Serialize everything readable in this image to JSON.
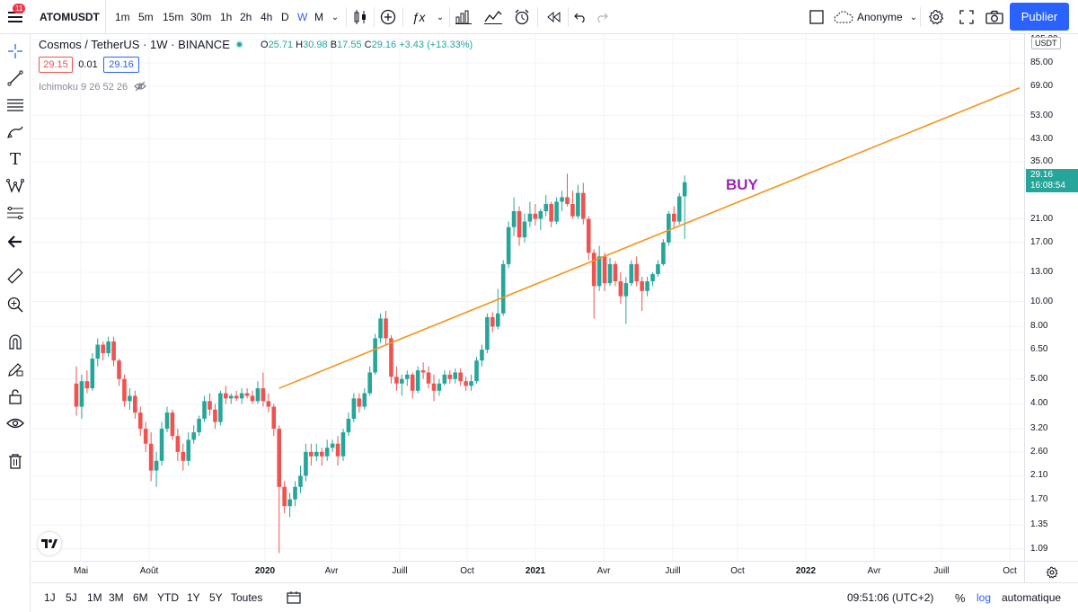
{
  "toolbar": {
    "badge": "11",
    "symbol": "ATOMUSDT",
    "timeframes": [
      "1m",
      "5m",
      "15m",
      "30m",
      "1h",
      "2h",
      "4h",
      "D",
      "W",
      "M"
    ],
    "active_timeframe": "W",
    "indicator_label": "ƒx",
    "account": "Anonyme",
    "publish": "Publier"
  },
  "legend": {
    "title": "Cosmos / TetherUS · 1W · BINANCE",
    "open_key": "O",
    "open": "25.71",
    "high_key": "H",
    "high": "30.98",
    "low_key": "B",
    "low": "17.55",
    "close_key": "C",
    "close": "29.16",
    "change": "+3.43 (+13.33%)",
    "bid": "29.15",
    "spread": "0.01",
    "ask": "29.16",
    "indicator": "Ichimoku 9 26 52 26"
  },
  "price_axis": {
    "unit": "USDT",
    "labels": [
      "105.00",
      "85.00",
      "69.00",
      "53.00",
      "43.00",
      "35.00",
      "21.00",
      "17.00",
      "13.00",
      "10.00",
      "8.00",
      "6.50",
      "5.00",
      "4.00",
      "3.20",
      "2.60",
      "2.10",
      "1.70",
      "1.35",
      "1.09"
    ],
    "current_price": "29.16",
    "countdown": "16:08:54"
  },
  "time_axis": {
    "labels": [
      {
        "text": "Mai",
        "bold": false
      },
      {
        "text": "Août",
        "bold": false
      },
      {
        "text": "2020",
        "bold": true
      },
      {
        "text": "Avr",
        "bold": false
      },
      {
        "text": "Juill",
        "bold": false
      },
      {
        "text": "Oct",
        "bold": false
      },
      {
        "text": "2021",
        "bold": true
      },
      {
        "text": "Avr",
        "bold": false
      },
      {
        "text": "Juill",
        "bold": false
      },
      {
        "text": "Oct",
        "bold": false
      },
      {
        "text": "2022",
        "bold": true
      },
      {
        "text": "Avr",
        "bold": false
      },
      {
        "text": "Juill",
        "bold": false
      },
      {
        "text": "Oct",
        "bold": false
      }
    ]
  },
  "annotation": {
    "text": "BUY",
    "color": "#9c27b0"
  },
  "trendline_color": "#f7931a",
  "colors": {
    "up": "#26a69a",
    "down": "#ef5350",
    "accent": "#2962ff"
  },
  "bottom": {
    "ranges": [
      "1J",
      "5J",
      "1M",
      "3M",
      "6M",
      "YTD",
      "1Y",
      "5Y",
      "Toutes"
    ],
    "time": "09:51:06 (UTC+2)",
    "percent": "%",
    "log": "log",
    "auto": "automatique"
  },
  "chart_data": {
    "type": "candlestick",
    "scale": "log",
    "symbol": "ATOMUSDT",
    "interval": "1W",
    "ylim": [
      0.98,
      110
    ],
    "candles": [
      [
        4.8,
        5.6,
        3.6,
        3.9
      ],
      [
        3.9,
        5.2,
        3.5,
        4.9
      ],
      [
        4.9,
        5.4,
        4.4,
        4.6
      ],
      [
        4.6,
        6.3,
        4.5,
        6.0
      ],
      [
        6.0,
        7.2,
        5.6,
        6.8
      ],
      [
        6.8,
        7.0,
        5.9,
        6.3
      ],
      [
        6.3,
        7.3,
        6.1,
        7.0
      ],
      [
        7.0,
        7.3,
        5.6,
        5.9
      ],
      [
        5.9,
        6.0,
        4.7,
        5.0
      ],
      [
        5.0,
        5.2,
        3.9,
        4.1
      ],
      [
        4.1,
        4.6,
        3.8,
        4.3
      ],
      [
        4.3,
        4.5,
        3.5,
        3.7
      ],
      [
        3.7,
        3.9,
        3.0,
        3.2
      ],
      [
        3.2,
        3.4,
        2.6,
        2.8
      ],
      [
        2.8,
        3.1,
        2.0,
        2.2
      ],
      [
        2.2,
        2.6,
        1.9,
        2.4
      ],
      [
        2.4,
        3.4,
        2.3,
        3.2
      ],
      [
        3.2,
        3.9,
        3.1,
        3.7
      ],
      [
        3.7,
        3.8,
        2.9,
        3.0
      ],
      [
        3.0,
        3.2,
        2.4,
        2.6
      ],
      [
        2.6,
        2.8,
        2.2,
        2.4
      ],
      [
        2.4,
        3.1,
        2.3,
        2.9
      ],
      [
        2.9,
        3.3,
        2.8,
        3.1
      ],
      [
        3.1,
        3.6,
        3.0,
        3.5
      ],
      [
        3.5,
        4.3,
        3.4,
        4.1
      ],
      [
        4.1,
        4.4,
        3.6,
        3.8
      ],
      [
        3.8,
        4.0,
        3.2,
        3.4
      ],
      [
        3.4,
        4.5,
        3.3,
        4.4
      ],
      [
        4.4,
        4.7,
        4.0,
        4.2
      ],
      [
        4.2,
        4.4,
        4.0,
        4.3
      ],
      [
        4.3,
        4.5,
        4.1,
        4.2
      ],
      [
        4.2,
        4.6,
        4.0,
        4.4
      ],
      [
        4.4,
        4.6,
        4.2,
        4.3
      ],
      [
        4.3,
        4.5,
        4.0,
        4.1
      ],
      [
        4.1,
        4.9,
        4.0,
        4.6
      ],
      [
        4.6,
        5.3,
        3.9,
        4.1
      ],
      [
        4.1,
        4.4,
        3.7,
        3.9
      ],
      [
        3.9,
        4.0,
        3.0,
        3.2
      ],
      [
        3.2,
        3.3,
        1.05,
        1.9
      ],
      [
        1.9,
        2.0,
        1.5,
        1.6
      ],
      [
        1.6,
        1.8,
        1.45,
        1.7
      ],
      [
        1.7,
        2.0,
        1.6,
        1.9
      ],
      [
        1.9,
        2.3,
        1.8,
        2.1
      ],
      [
        2.1,
        2.8,
        2.0,
        2.6
      ],
      [
        2.6,
        2.8,
        2.3,
        2.5
      ],
      [
        2.5,
        2.8,
        2.4,
        2.6
      ],
      [
        2.6,
        2.7,
        2.3,
        2.5
      ],
      [
        2.5,
        2.9,
        2.4,
        2.7
      ],
      [
        2.7,
        2.9,
        2.6,
        2.8
      ],
      [
        2.8,
        3.0,
        2.3,
        2.5
      ],
      [
        2.5,
        3.2,
        2.4,
        3.1
      ],
      [
        3.1,
        3.7,
        3.0,
        3.5
      ],
      [
        3.5,
        4.4,
        3.4,
        4.2
      ],
      [
        4.2,
        4.4,
        3.7,
        3.9
      ],
      [
        3.9,
        4.6,
        3.8,
        4.4
      ],
      [
        4.4,
        5.6,
        4.3,
        5.3
      ],
      [
        5.3,
        7.5,
        5.2,
        7.2
      ],
      [
        7.2,
        9.0,
        6.9,
        8.6
      ],
      [
        8.6,
        9.2,
        6.8,
        7.2
      ],
      [
        7.2,
        7.4,
        4.8,
        5.1
      ],
      [
        5.1,
        5.6,
        4.5,
        4.8
      ],
      [
        4.8,
        5.2,
        4.3,
        5.0
      ],
      [
        5.0,
        5.4,
        4.7,
        5.2
      ],
      [
        5.2,
        5.3,
        4.2,
        4.5
      ],
      [
        4.5,
        5.6,
        4.4,
        5.4
      ],
      [
        5.4,
        5.8,
        5.0,
        5.3
      ],
      [
        5.3,
        5.6,
        4.6,
        4.8
      ],
      [
        4.8,
        5.2,
        4.1,
        4.5
      ],
      [
        4.5,
        5.0,
        4.3,
        4.8
      ],
      [
        4.8,
        5.4,
        4.7,
        5.2
      ],
      [
        5.2,
        5.4,
        4.8,
        5.0
      ],
      [
        5.0,
        5.5,
        4.8,
        5.3
      ],
      [
        5.3,
        5.5,
        4.7,
        4.9
      ],
      [
        4.9,
        5.1,
        4.5,
        4.7
      ],
      [
        4.7,
        5.2,
        4.5,
        4.9
      ],
      [
        4.9,
        6.1,
        4.8,
        5.9
      ],
      [
        5.9,
        6.8,
        5.6,
        6.5
      ],
      [
        6.5,
        9.0,
        6.3,
        8.7
      ],
      [
        8.7,
        9.1,
        7.6,
        8.0
      ],
      [
        8.0,
        11.2,
        7.8,
        9.0
      ],
      [
        9.0,
        14.5,
        8.8,
        14.0
      ],
      [
        14.0,
        20.5,
        13.5,
        19.5
      ],
      [
        19.5,
        25.5,
        18.0,
        22.5
      ],
      [
        22.5,
        23.5,
        16.5,
        17.8
      ],
      [
        17.8,
        22.0,
        17.0,
        20.5
      ],
      [
        20.5,
        24.5,
        19.5,
        22.0
      ],
      [
        22.0,
        24.0,
        19.8,
        21.0
      ],
      [
        21.0,
        23.0,
        19.0,
        22.5
      ],
      [
        22.5,
        26.0,
        21.5,
        24.0
      ],
      [
        24.0,
        24.5,
        19.5,
        20.5
      ],
      [
        20.5,
        25.5,
        20.0,
        24.5
      ],
      [
        24.5,
        27.0,
        22.5,
        25.5
      ],
      [
        25.5,
        31.5,
        23.5,
        24.0
      ],
      [
        24.0,
        27.0,
        21.0,
        21.5
      ],
      [
        21.5,
        28.5,
        21.0,
        26.5
      ],
      [
        26.5,
        29.0,
        20.0,
        21.0
      ],
      [
        21.0,
        21.5,
        14.5,
        15.5
      ],
      [
        15.5,
        16.0,
        8.6,
        11.5
      ],
      [
        11.5,
        16.5,
        11.0,
        15.0
      ],
      [
        15.0,
        15.5,
        11.0,
        11.8
      ],
      [
        11.8,
        14.8,
        11.5,
        14.0
      ],
      [
        14.0,
        14.4,
        11.5,
        12.0
      ],
      [
        12.0,
        13.0,
        9.8,
        10.5
      ],
      [
        10.5,
        12.5,
        8.2,
        11.8
      ],
      [
        11.8,
        14.5,
        11.5,
        14.0
      ],
      [
        14.0,
        15.0,
        11.5,
        12.0
      ],
      [
        12.0,
        12.5,
        9.2,
        11.0
      ],
      [
        11.0,
        12.5,
        10.5,
        12.0
      ],
      [
        12.0,
        13.0,
        11.5,
        12.8
      ],
      [
        12.8,
        14.5,
        12.5,
        14.0
      ],
      [
        14.0,
        17.5,
        13.8,
        17.0
      ],
      [
        17.0,
        22.5,
        16.5,
        22.0
      ],
      [
        22.0,
        23.5,
        19.5,
        20.5
      ],
      [
        20.5,
        26.5,
        20.0,
        25.7
      ],
      [
        25.71,
        30.98,
        17.55,
        29.16
      ]
    ],
    "trendline": {
      "from": [
        4.6,
        6.0
      ],
      "to": [
        68.0,
        30.0
      ],
      "note": "x positions given in candle-index units, y in price"
    }
  }
}
